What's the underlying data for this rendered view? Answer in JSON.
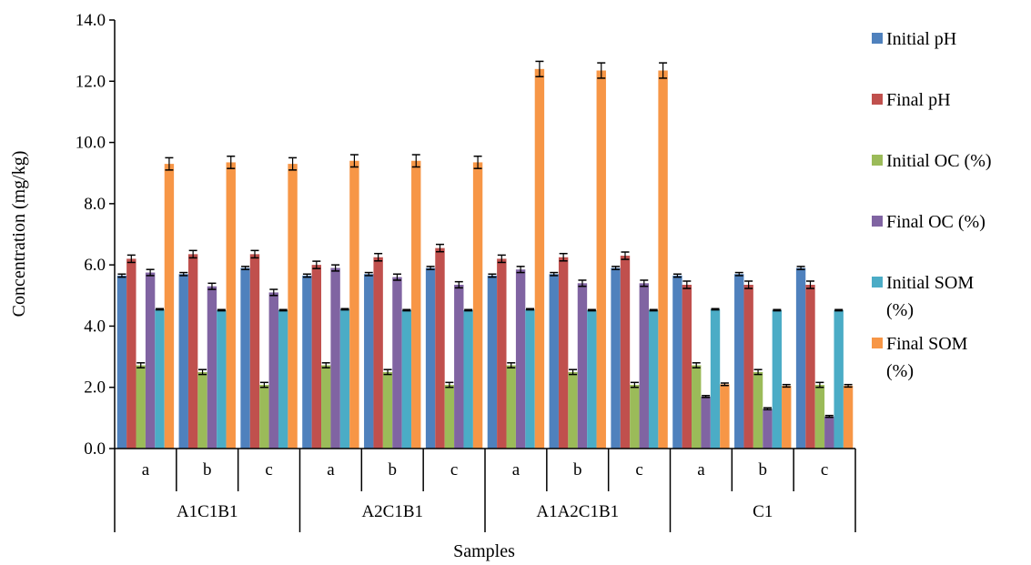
{
  "chart_data": {
    "type": "bar",
    "xlabel": "Samples",
    "ylabel": "Concentration (mg/kg)",
    "ylim": [
      0,
      14
    ],
    "yticks": [
      "0.0",
      "2.0",
      "4.0",
      "6.0",
      "8.0",
      "10.0",
      "12.0",
      "14.0"
    ],
    "grid": false,
    "legend_position": "right",
    "groups": [
      {
        "label": "A1C1B1",
        "categories": [
          "a",
          "b",
          "c"
        ]
      },
      {
        "label": "A2C1B1",
        "categories": [
          "a",
          "b",
          "c"
        ]
      },
      {
        "label": "A1A2C1B1",
        "categories": [
          "a",
          "b",
          "c"
        ]
      },
      {
        "label": "C1",
        "categories": [
          "a",
          "b",
          "c"
        ]
      }
    ],
    "series": [
      {
        "name": "Initial pH",
        "color": "#4f81bd",
        "values": [
          5.65,
          5.7,
          5.9,
          5.65,
          5.7,
          5.9,
          5.65,
          5.7,
          5.9,
          5.65,
          5.7,
          5.9
        ],
        "errors": [
          0.05,
          0.05,
          0.05,
          0.05,
          0.05,
          0.05,
          0.05,
          0.05,
          0.05,
          0.05,
          0.05,
          0.05
        ]
      },
      {
        "name": "Final pH",
        "color": "#c0504d",
        "values": [
          6.2,
          6.35,
          6.35,
          6.0,
          6.25,
          6.55,
          6.2,
          6.25,
          6.3,
          5.35,
          5.35,
          5.35
        ],
        "errors": [
          0.12,
          0.12,
          0.12,
          0.12,
          0.12,
          0.12,
          0.12,
          0.12,
          0.12,
          0.12,
          0.12,
          0.12
        ]
      },
      {
        "name": "Initial OC (%)",
        "color": "#9bbb59",
        "values": [
          2.72,
          2.5,
          2.08,
          2.72,
          2.5,
          2.08,
          2.72,
          2.5,
          2.08,
          2.72,
          2.5,
          2.08
        ],
        "errors": [
          0.08,
          0.08,
          0.08,
          0.08,
          0.08,
          0.08,
          0.08,
          0.08,
          0.08,
          0.08,
          0.08,
          0.08
        ]
      },
      {
        "name": "Final OC (%)",
        "color": "#8064a2",
        "values": [
          5.75,
          5.3,
          5.1,
          5.9,
          5.6,
          5.35,
          5.85,
          5.4,
          5.4,
          1.7,
          1.3,
          1.05
        ],
        "errors": [
          0.1,
          0.1,
          0.1,
          0.1,
          0.1,
          0.1,
          0.1,
          0.1,
          0.1,
          0.03,
          0.03,
          0.03
        ]
      },
      {
        "name": "Initial SOM (%)",
        "color": "#4bacc6",
        "values": [
          4.55,
          4.52,
          4.52,
          4.55,
          4.52,
          4.52,
          4.55,
          4.52,
          4.52,
          4.55,
          4.52,
          4.52
        ],
        "errors": [
          0.02,
          0.02,
          0.02,
          0.02,
          0.02,
          0.02,
          0.02,
          0.02,
          0.02,
          0.02,
          0.02,
          0.02
        ]
      },
      {
        "name": "Final SOM (%)",
        "color": "#f79646",
        "values": [
          9.3,
          9.35,
          9.3,
          9.4,
          9.4,
          9.35,
          12.4,
          12.35,
          12.35,
          2.1,
          2.05,
          2.05
        ],
        "errors": [
          0.2,
          0.2,
          0.2,
          0.2,
          0.2,
          0.2,
          0.25,
          0.25,
          0.25,
          0.04,
          0.04,
          0.04
        ]
      }
    ]
  }
}
